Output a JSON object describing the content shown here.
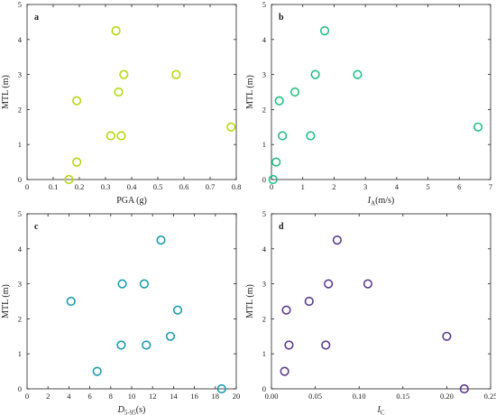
{
  "chart_data": [
    {
      "panel": "a",
      "type": "scatter",
      "marker_color": "#b5d90f",
      "xlabel": "PGA (g)",
      "xlabel_main": "PGA (g)",
      "xlabel_sub": "",
      "xlabel_tail": "",
      "ylabel": "MTL (m)",
      "xlim": [
        0,
        0.8
      ],
      "ylim": [
        0,
        5
      ],
      "xticks": [
        0,
        0.1,
        0.2,
        0.3,
        0.4,
        0.5,
        0.6,
        0.7,
        0.8
      ],
      "xticklabels": [
        "0",
        "0.1",
        "0.2",
        "0.3",
        "0.4",
        "0.5",
        "0.6",
        "0.7",
        "0.8"
      ],
      "yticks": [
        0,
        1,
        2,
        3,
        4,
        5
      ],
      "yticklabels": [
        "0",
        "1",
        "2",
        "3",
        "4",
        "5"
      ],
      "points": [
        [
          0.34,
          4.25
        ],
        [
          0.37,
          3.0
        ],
        [
          0.57,
          3.0
        ],
        [
          0.19,
          2.25
        ],
        [
          0.35,
          2.5
        ],
        [
          0.32,
          1.25
        ],
        [
          0.36,
          1.25
        ],
        [
          0.78,
          1.5
        ],
        [
          0.19,
          0.5
        ],
        [
          0.16,
          0.0
        ]
      ]
    },
    {
      "panel": "b",
      "type": "scatter",
      "marker_color": "#22c084",
      "xlabel": "IA(m/s)",
      "xlabel_main": "I",
      "xlabel_sub": "A",
      "xlabel_tail": "(m/s)",
      "ylabel": "MTL (m)",
      "xlim": [
        0,
        7
      ],
      "ylim": [
        0,
        5
      ],
      "xticks": [
        0,
        1,
        2,
        3,
        4,
        5,
        6,
        7
      ],
      "xticklabels": [
        "0",
        "1",
        "2",
        "3",
        "4",
        "5",
        "6",
        "7"
      ],
      "yticks": [
        0,
        1,
        2,
        3,
        4,
        5
      ],
      "yticklabels": [
        "0",
        "1",
        "2",
        "3",
        "4",
        "5"
      ],
      "points": [
        [
          1.7,
          4.25
        ],
        [
          1.4,
          3.0
        ],
        [
          2.75,
          3.0
        ],
        [
          0.75,
          2.5
        ],
        [
          0.25,
          2.25
        ],
        [
          0.35,
          1.25
        ],
        [
          1.25,
          1.25
        ],
        [
          6.6,
          1.5
        ],
        [
          0.15,
          0.5
        ],
        [
          0.05,
          0.0
        ]
      ]
    },
    {
      "panel": "c",
      "type": "scatter",
      "marker_color": "#1a9cae",
      "xlabel": "D5-95(s)",
      "xlabel_main": "D",
      "xlabel_sub": "5-95",
      "xlabel_tail": "(s)",
      "ylabel": "MTL (m)",
      "xlim": [
        0,
        20
      ],
      "ylim": [
        0,
        5
      ],
      "xticks": [
        0,
        2,
        4,
        6,
        8,
        10,
        12,
        14,
        16,
        18,
        20
      ],
      "xticklabels": [
        "0",
        "2",
        "4",
        "6",
        "8",
        "10",
        "12",
        "14",
        "16",
        "18",
        "20"
      ],
      "yticks": [
        0,
        1,
        2,
        3,
        4,
        5
      ],
      "yticklabels": [
        "0",
        "1",
        "2",
        "3",
        "4",
        "5"
      ],
      "points": [
        [
          12.8,
          4.25
        ],
        [
          9.1,
          3.0
        ],
        [
          11.2,
          3.0
        ],
        [
          4.2,
          2.5
        ],
        [
          14.4,
          2.25
        ],
        [
          9.0,
          1.25
        ],
        [
          11.4,
          1.25
        ],
        [
          13.7,
          1.5
        ],
        [
          6.7,
          0.5
        ],
        [
          18.6,
          0.0
        ]
      ]
    },
    {
      "panel": "d",
      "type": "scatter",
      "marker_color": "#5b3a8e",
      "xlabel": "IC",
      "xlabel_main": "I",
      "xlabel_sub": "C",
      "xlabel_tail": "",
      "ylabel": "MTL (m)",
      "xlim": [
        0,
        0.25
      ],
      "ylim": [
        0,
        5
      ],
      "xticks": [
        0,
        0.05,
        0.1,
        0.15,
        0.2,
        0.25
      ],
      "xticklabels": [
        "0.00",
        "0.05",
        "0.10",
        "0.15",
        "0.20",
        "0.25"
      ],
      "yticks": [
        0,
        1,
        2,
        3,
        4,
        5
      ],
      "yticklabels": [
        "0",
        "1",
        "2",
        "3",
        "4",
        "5"
      ],
      "points": [
        [
          0.075,
          4.25
        ],
        [
          0.065,
          3.0
        ],
        [
          0.11,
          3.0
        ],
        [
          0.043,
          2.5
        ],
        [
          0.017,
          2.25
        ],
        [
          0.02,
          1.25
        ],
        [
          0.062,
          1.25
        ],
        [
          0.2,
          1.5
        ],
        [
          0.015,
          0.5
        ],
        [
          0.22,
          0.0
        ]
      ]
    }
  ]
}
